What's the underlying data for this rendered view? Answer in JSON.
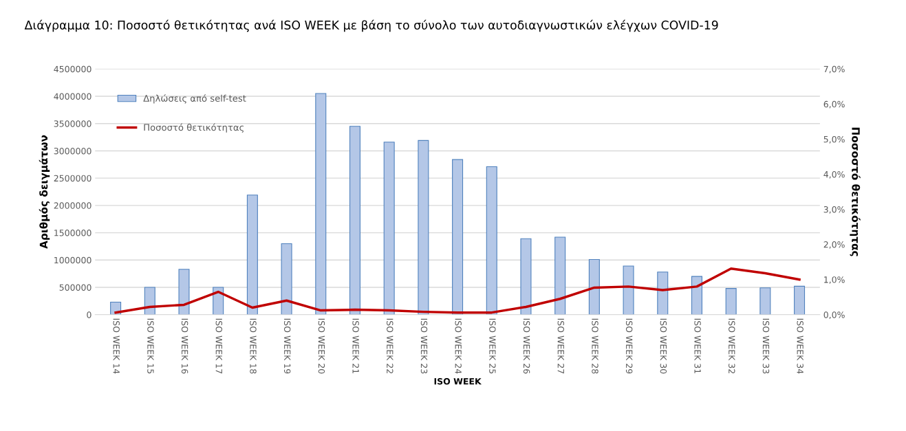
{
  "chart_data": {
    "type": "bar",
    "title": "Διάγραμμα 10: Ποσοστό θετικότητας ανά ISO WEEK με βάση το σύνολο των αυτοδιαγνωστικών ελέγχων COVID-19",
    "categories": [
      "ISO WEEK 14",
      "ISO WEEK 15",
      "ISO WEEK 16",
      "ISO WEEK 17",
      "ISO WEEK 18",
      "ISO WEEK 19",
      "ISO WEEK 20",
      "ISO WEEK 21",
      "ISO WEEK 22",
      "ISO WEEK 23",
      "ISO WEEK 24",
      "ISO WEEK 25",
      "ISO WEEK 26",
      "ISO WEEK 27",
      "ISO WEEK 28",
      "ISO WEEK 29",
      "ISO WEEK 30",
      "ISO WEEK 31",
      "ISO WEEK 32",
      "ISO WEEK 33",
      "ISO WEEK 34"
    ],
    "xlabel": "ISO WEEK",
    "ylabel": "Αριθμός δειγμάτων",
    "y2label": "Ποσοστό θετικότητας",
    "series": [
      {
        "name": "Δηλώσεις από self-test",
        "color": "#b4c7e7",
        "values": [
          230000,
          500000,
          830000,
          500000,
          2190000,
          1300000,
          4050000,
          3450000,
          3160000,
          3190000,
          2840000,
          2710000,
          1390000,
          1420000,
          1010000,
          890000,
          780000,
          700000,
          480000,
          490000,
          520000
        ]
      },
      {
        "name": "Ποσοστό θετικότητας",
        "type": "line",
        "axis": "y2",
        "color": "#c00000",
        "values": [
          0.06,
          0.22,
          0.28,
          0.65,
          0.2,
          0.4,
          0.12,
          0.14,
          0.12,
          0.08,
          0.06,
          0.06,
          0.22,
          0.45,
          0.77,
          0.8,
          0.7,
          0.8,
          1.31,
          1.18,
          1.0
        ]
      }
    ],
    "ylim": [
      0,
      4500000
    ],
    "yticks": [
      0,
      500000,
      1000000,
      1500000,
      2000000,
      2500000,
      3000000,
      3500000,
      4000000,
      4500000
    ],
    "y2lim": [
      0,
      7
    ],
    "y2ticks": [
      {
        "value": 0,
        "label": "0,0%"
      },
      {
        "value": 1,
        "label": "1,0%"
      },
      {
        "value": 2,
        "label": "2,0%"
      },
      {
        "value": 3,
        "label": "3,0%"
      },
      {
        "value": 4,
        "label": "4,0%"
      },
      {
        "value": 5,
        "label": "5,0%"
      },
      {
        "value": 6,
        "label": "6,0%"
      },
      {
        "value": 7,
        "label": "7,0%"
      }
    ],
    "grid": "y",
    "legend": "top left",
    "marker": "none",
    "line_style": "solid"
  }
}
